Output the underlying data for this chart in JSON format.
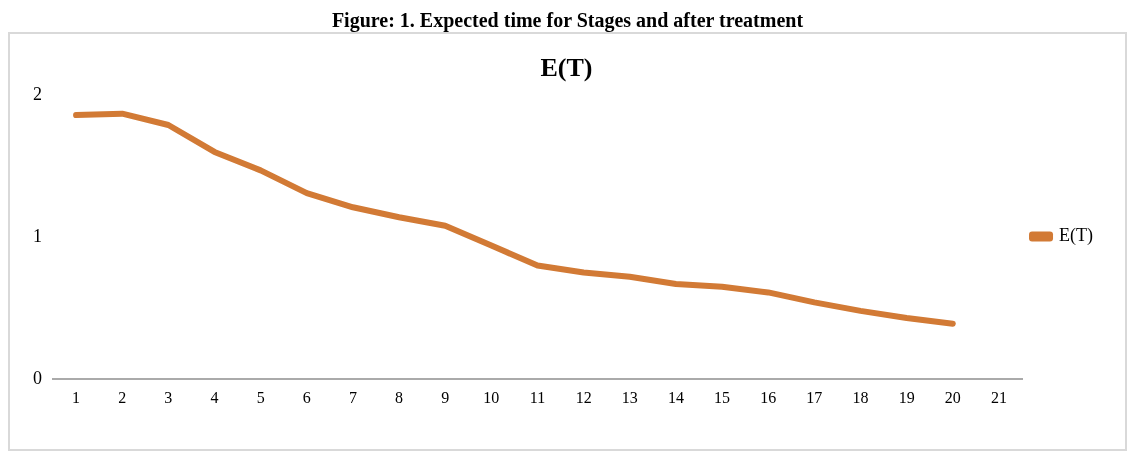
{
  "chart_data": {
    "type": "line",
    "title": "E(T)",
    "annotations": [
      "Figure: 1. Expected time for Stages and after treatment"
    ],
    "categories": [
      "1",
      "2",
      "3",
      "4",
      "5",
      "6",
      "7",
      "8",
      "9",
      "10",
      "11",
      "12",
      "13",
      "14",
      "15",
      "16",
      "17",
      "18",
      "19",
      "20",
      "21"
    ],
    "series": [
      {
        "name": "E(T)",
        "color": "#d27a35",
        "values": [
          1.86,
          1.87,
          1.79,
          1.6,
          1.47,
          1.31,
          1.21,
          1.14,
          1.08,
          0.94,
          0.8,
          0.75,
          0.72,
          0.67,
          0.65,
          0.61,
          0.54,
          0.48,
          0.43,
          0.39,
          null
        ]
      }
    ],
    "ylim": [
      0,
      2
    ],
    "yticks": [
      0,
      1,
      2
    ],
    "grid": false,
    "legend": "right",
    "marker": "none",
    "line_style": "solid"
  }
}
